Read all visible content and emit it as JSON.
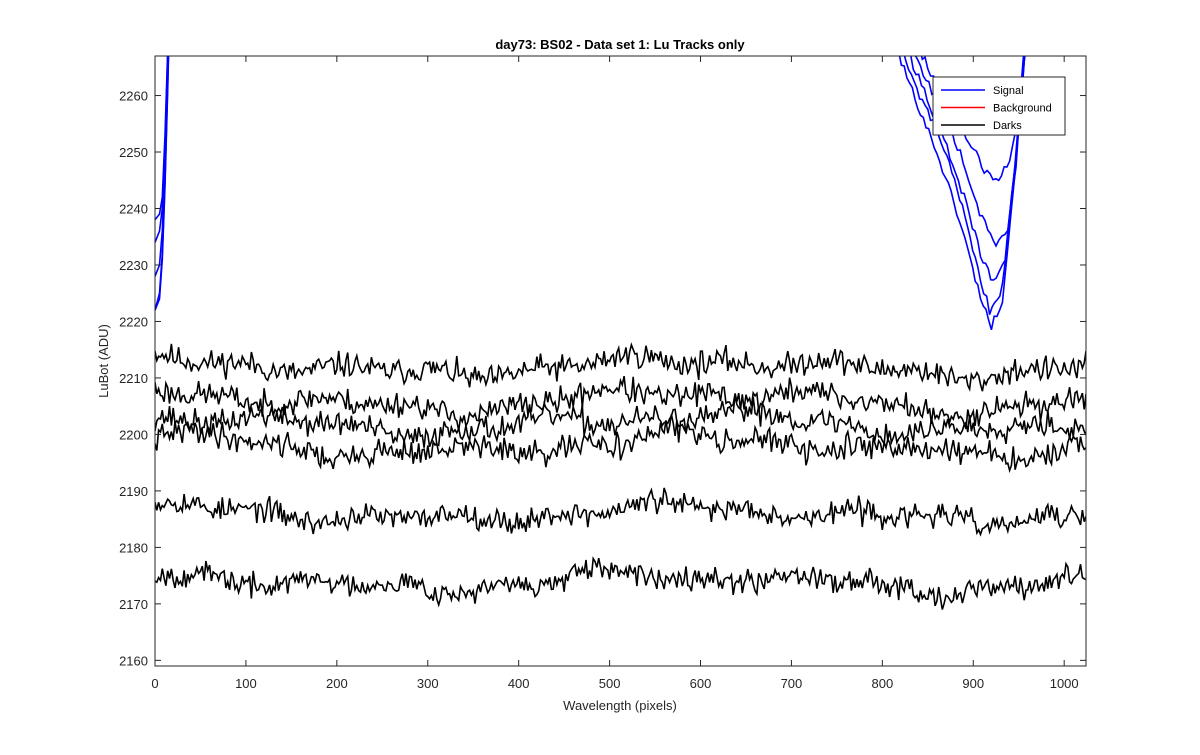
{
  "chart_data": {
    "type": "line",
    "title": "day73: BS02 - Data set 1: Lu Tracks only",
    "xlabel": "Wavelength (pixels)",
    "ylabel": "LuBot (ADU)",
    "xlim": [
      0,
      1024
    ],
    "ylim": [
      2159,
      2267
    ],
    "xticks": [
      0,
      100,
      200,
      300,
      400,
      500,
      600,
      700,
      800,
      900,
      1000
    ],
    "yticks": [
      2160,
      2170,
      2180,
      2190,
      2200,
      2210,
      2220,
      2230,
      2240,
      2250,
      2260
    ],
    "grid": false,
    "legend": {
      "location": "top-right",
      "entries": [
        {
          "name": "Signal",
          "color": "#0000ff"
        },
        {
          "name": "Background",
          "color": "#ff0000"
        },
        {
          "name": "Darks",
          "color": "#000000"
        }
      ]
    },
    "signal_curves": [
      {
        "color": "#0000ff",
        "left": [
          [
            0,
            2222
          ],
          [
            5,
            2225
          ],
          [
            8,
            2232
          ],
          [
            11,
            2245
          ],
          [
            14,
            2262
          ],
          [
            16,
            2275
          ]
        ],
        "right": [
          [
            800,
            2275
          ],
          [
            830,
            2262
          ],
          [
            860,
            2250
          ],
          [
            885,
            2238
          ],
          [
            905,
            2226
          ],
          [
            920,
            2219
          ],
          [
            932,
            2224
          ],
          [
            945,
            2245
          ],
          [
            955,
            2265
          ],
          [
            960,
            2280
          ]
        ]
      },
      {
        "color": "#0000ff",
        "left": [
          [
            0,
            2228
          ],
          [
            5,
            2230
          ],
          [
            8,
            2236
          ],
          [
            11,
            2248
          ],
          [
            14,
            2265
          ],
          [
            16,
            2278
          ]
        ],
        "right": [
          [
            805,
            2275
          ],
          [
            835,
            2262
          ],
          [
            865,
            2252
          ],
          [
            888,
            2240
          ],
          [
            905,
            2229
          ],
          [
            918,
            2222
          ],
          [
            932,
            2226
          ],
          [
            945,
            2246
          ],
          [
            955,
            2266
          ],
          [
            960,
            2280
          ]
        ]
      },
      {
        "color": "#0000ff",
        "left": [
          [
            0,
            2234
          ],
          [
            5,
            2236
          ],
          [
            8,
            2240
          ],
          [
            11,
            2251
          ],
          [
            14,
            2267
          ],
          [
            16,
            2279
          ]
        ],
        "right": [
          [
            810,
            2275
          ],
          [
            840,
            2263
          ],
          [
            868,
            2252
          ],
          [
            890,
            2242
          ],
          [
            908,
            2232
          ],
          [
            922,
            2227
          ],
          [
            935,
            2231
          ],
          [
            947,
            2248
          ],
          [
            956,
            2266
          ],
          [
            961,
            2280
          ]
        ]
      },
      {
        "color": "#0000ff",
        "left": [
          [
            0,
            2238
          ],
          [
            5,
            2239
          ],
          [
            8,
            2242
          ],
          [
            11,
            2253
          ],
          [
            14,
            2268
          ],
          [
            16,
            2280
          ]
        ],
        "right": [
          [
            815,
            2275
          ],
          [
            845,
            2264
          ],
          [
            870,
            2256
          ],
          [
            892,
            2247
          ],
          [
            910,
            2238
          ],
          [
            925,
            2234
          ],
          [
            938,
            2236
          ],
          [
            948,
            2250
          ],
          [
            956,
            2266
          ],
          [
            961,
            2280
          ]
        ]
      },
      {
        "color": "#0000ff",
        "left": [
          [
            0,
            2222
          ],
          [
            5,
            2224
          ],
          [
            8,
            2231
          ],
          [
            11,
            2244
          ],
          [
            14,
            2261
          ],
          [
            16,
            2274
          ]
        ],
        "right": [
          [
            820,
            2275
          ],
          [
            850,
            2265
          ],
          [
            875,
            2258
          ],
          [
            895,
            2252
          ],
          [
            912,
            2247
          ],
          [
            925,
            2245
          ],
          [
            940,
            2248
          ],
          [
            950,
            2256
          ],
          [
            957,
            2268
          ],
          [
            962,
            2280
          ]
        ]
      }
    ],
    "darks": [
      {
        "color": "#000000",
        "baseline": 2212,
        "amp": 2,
        "noise": 1.4,
        "seed": 11
      },
      {
        "color": "#000000",
        "baseline": 2206,
        "amp": 2.5,
        "noise": 1.4,
        "seed": 23
      },
      {
        "color": "#000000",
        "baseline": 2202,
        "amp": 2.2,
        "noise": 1.4,
        "seed": 37
      },
      {
        "color": "#000000",
        "baseline": 2198,
        "amp": 2.5,
        "noise": 1.4,
        "seed": 41
      },
      {
        "color": "#000000",
        "baseline": 2186,
        "amp": 1.8,
        "noise": 1.3,
        "seed": 53
      },
      {
        "color": "#000000",
        "baseline": 2174,
        "amp": 2,
        "noise": 1.3,
        "seed": 67
      }
    ]
  }
}
